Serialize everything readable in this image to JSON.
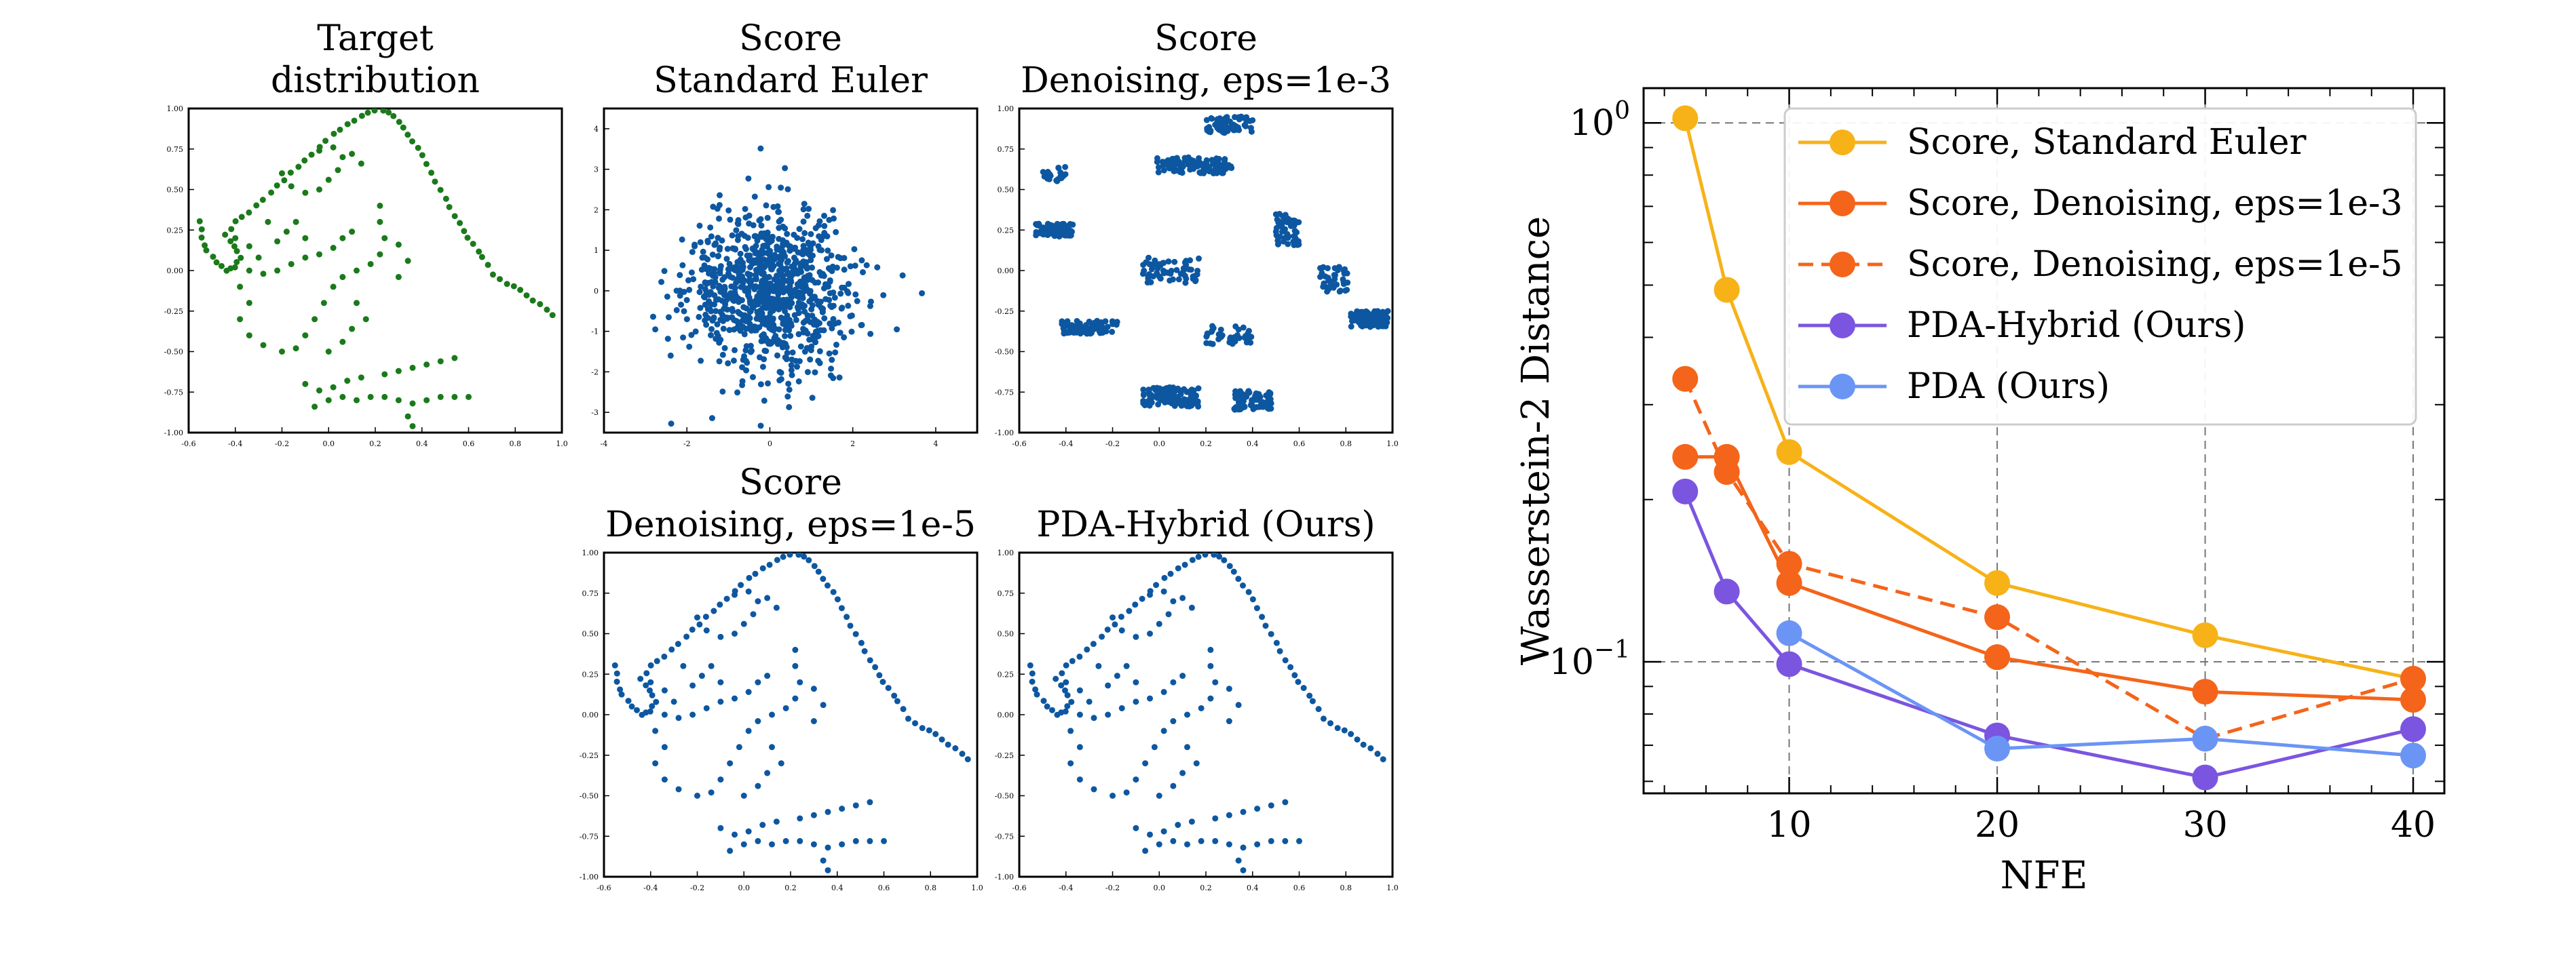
{
  "chart_data": [
    {
      "type": "scatter",
      "title_lines": [
        "Target",
        "distribution"
      ],
      "color": "#1a7a1a",
      "xlim": [
        -0.6,
        1.0
      ],
      "ylim": [
        -1.0,
        1.0
      ],
      "xticks": [
        "-0.6",
        "-0.4",
        "-0.2",
        "0.0",
        "0.2",
        "0.4",
        "0.6",
        "0.8",
        "1.0"
      ],
      "yticks": [
        "-1.00",
        "-0.75",
        "-0.50",
        "-0.25",
        "0.00",
        "0.25",
        "0.50",
        "0.75",
        "1.00"
      ],
      "points": "dino"
    },
    {
      "type": "scatter",
      "title_lines": [
        "Score",
        "Standard Euler"
      ],
      "color": "#0d57a1",
      "xlim": [
        -4,
        5
      ],
      "ylim": [
        -3.5,
        4.5
      ],
      "xticks": [
        "-4",
        "-2",
        "0",
        "2",
        "4"
      ],
      "yticks": [
        "-3",
        "-2",
        "-1",
        "0",
        "1",
        "2",
        "3",
        "4"
      ],
      "points": "gaussian"
    },
    {
      "type": "scatter",
      "title_lines": [
        "Score",
        "Denoising, eps=1e-3"
      ],
      "color": "#0d57a1",
      "xlim": [
        -0.6,
        1.0
      ],
      "ylim": [
        -1.0,
        1.0
      ],
      "xticks": [
        "-0.6",
        "-0.4",
        "-0.2",
        "0.0",
        "0.2",
        "0.4",
        "0.6",
        "0.8",
        "1.0"
      ],
      "yticks": [
        "-1.00",
        "-0.75",
        "-0.50",
        "-0.25",
        "0.00",
        "0.25",
        "0.50",
        "0.75",
        "1.00"
      ],
      "points": "clusters"
    },
    {
      "type": "scatter",
      "title_lines": [
        "Score",
        "Denoising, eps=1e-5"
      ],
      "color": "#0d57a1",
      "xlim": [
        -0.6,
        1.0
      ],
      "ylim": [
        -1.0,
        1.0
      ],
      "xticks": [
        "-0.6",
        "-0.4",
        "-0.2",
        "0.0",
        "0.2",
        "0.4",
        "0.6",
        "0.8",
        "1.0"
      ],
      "yticks": [
        "-1.00",
        "-0.75",
        "-0.50",
        "-0.25",
        "0.00",
        "0.25",
        "0.50",
        "0.75",
        "1.00"
      ],
      "points": "dino"
    },
    {
      "type": "scatter",
      "title_lines": [
        "PDA-Hybrid (Ours)"
      ],
      "color": "#0d57a1",
      "xlim": [
        -0.6,
        1.0
      ],
      "ylim": [
        -1.0,
        1.0
      ],
      "xticks": [
        "-0.6",
        "-0.4",
        "-0.2",
        "0.0",
        "0.2",
        "0.4",
        "0.6",
        "0.8",
        "1.0"
      ],
      "yticks": [
        "-1.00",
        "-0.75",
        "-0.50",
        "-0.25",
        "0.00",
        "0.25",
        "0.50",
        "0.75",
        "1.00"
      ],
      "points": "dino"
    },
    {
      "type": "line",
      "xlabel": "NFE",
      "ylabel": "Wasserstein-2 Distance",
      "yscale": "log",
      "xlim": [
        3,
        41.5
      ],
      "ylim": [
        0.057,
        1.16
      ],
      "xticks": [
        10,
        20,
        30,
        40
      ],
      "xtick_labels": [
        "10",
        "20",
        "30",
        "40"
      ],
      "yticks": [
        0.1,
        1.0
      ],
      "ytick_labels": [
        {
          "base": "10",
          "exp": "−1"
        },
        {
          "base": "10",
          "exp": "0"
        }
      ],
      "legend_position": "upper right",
      "series": [
        {
          "name": "Score, Standard Euler",
          "color": "#f7b218",
          "dash": "solid",
          "x": [
            5,
            7,
            10,
            20,
            30,
            40
          ],
          "y": [
            1.02,
            0.49,
            0.245,
            0.14,
            0.112,
            0.093
          ]
        },
        {
          "name": "Score, Denoising, eps=1e-3",
          "color": "#f4641a",
          "dash": "solid",
          "x": [
            5,
            7,
            10,
            20,
            30,
            40
          ],
          "y": [
            0.24,
            0.24,
            0.14,
            0.102,
            0.088,
            0.085
          ]
        },
        {
          "name": "Score, Denoising, eps=1e-5",
          "color": "#f4641a",
          "dash": "dashed",
          "x": [
            5,
            7,
            10,
            20,
            30,
            40
          ],
          "y": [
            0.335,
            0.225,
            0.152,
            0.121,
            0.072,
            0.093
          ]
        },
        {
          "name": "PDA-Hybrid (Ours)",
          "color": "#7b55e0",
          "dash": "solid",
          "x": [
            5,
            7,
            10,
            20,
            30,
            40
          ],
          "y": [
            0.207,
            0.135,
            0.099,
            0.073,
            0.061,
            0.075
          ]
        },
        {
          "name": "PDA (Ours)",
          "color": "#6b95f5",
          "dash": "solid",
          "x": [
            10,
            20,
            30,
            40
          ],
          "y": [
            0.113,
            0.069,
            0.072,
            0.067
          ]
        }
      ]
    }
  ]
}
